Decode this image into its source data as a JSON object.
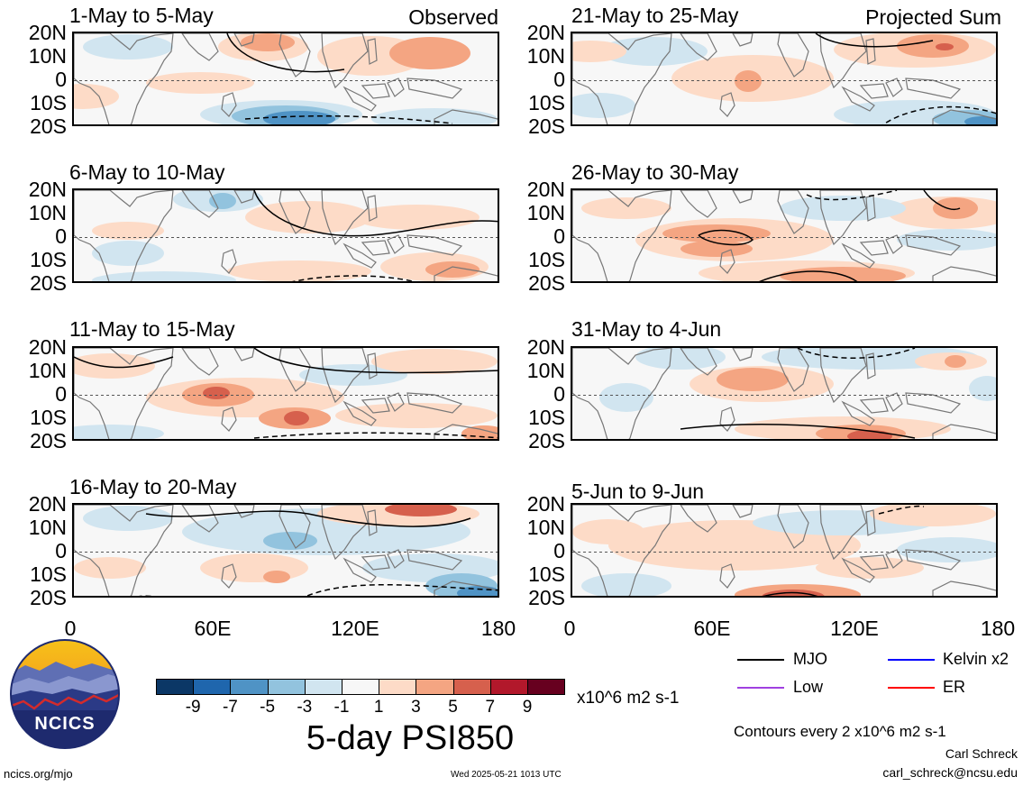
{
  "panels": [
    {
      "id": "p1",
      "title": "1-May to 5-May",
      "label": "Observed"
    },
    {
      "id": "p2",
      "title": "6-May to 10-May",
      "label": ""
    },
    {
      "id": "p3",
      "title": "11-May to 15-May",
      "label": ""
    },
    {
      "id": "p4",
      "title": "16-May to 20-May",
      "label": ""
    },
    {
      "id": "p5",
      "title": "21-May to 25-May",
      "label": "Projected Sum"
    },
    {
      "id": "p6",
      "title": "26-May to 30-May",
      "label": ""
    },
    {
      "id": "p7",
      "title": "31-May to 4-Jun",
      "label": ""
    },
    {
      "id": "p8",
      "title": "5-Jun to 9-Jun",
      "label": ""
    }
  ],
  "lat_labels": [
    "20N",
    "10N",
    "0",
    "10S",
    "20S"
  ],
  "lon_labels": [
    "0",
    "60E",
    "120E",
    "180"
  ],
  "colorbar": {
    "colors": [
      "#0b3766",
      "#1f66ad",
      "#4f93c5",
      "#92c3de",
      "#d1e5f0",
      "#f7f7f7",
      "#fddbc7",
      "#f4a582",
      "#d6604d",
      "#b2182b",
      "#67001f"
    ],
    "ticks": [
      "-9",
      "-7",
      "-5",
      "-3",
      "-1",
      "1",
      "3",
      "5",
      "7",
      "9"
    ],
    "units": "x10^6 m2 s-1"
  },
  "main_title": "5-day PSI850",
  "legend": [
    {
      "name": "MJO",
      "color": "#000000"
    },
    {
      "name": "Kelvin x2",
      "color": "#0000ff"
    },
    {
      "name": "Low",
      "color": "#a040e0"
    },
    {
      "name": "ER",
      "color": "#ff0000"
    }
  ],
  "contour_note": "Contours every 2 x10^6 m2 s-1",
  "author_name": "Carl Schreck",
  "author_email": "carl_schreck@ncsu.edu",
  "logo_text": "NCICS",
  "footer_url": "ncics.org/mjo",
  "footer_timestamp": "Wed 2025-05-21 1013 UTC"
}
